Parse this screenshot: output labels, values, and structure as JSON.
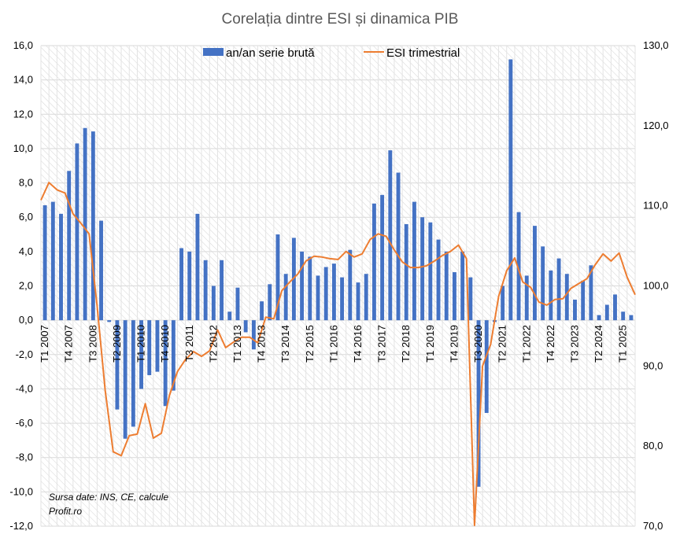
{
  "chart_data": {
    "type": "bar+line",
    "title": "Corelația dintre ESI și dinamica PIB",
    "source_note": "Sursa date: INS, CE, calcule",
    "source_site": "Profit.ro",
    "legend_position": "top",
    "grid": true,
    "colors": {
      "bar": "#4472C4",
      "line": "#ED7D31",
      "title": "#595959"
    },
    "y_left": {
      "ylim": [
        -12,
        16
      ],
      "ticks": [
        "16,0",
        "14,0",
        "12,0",
        "10,0",
        "8,0",
        "6,0",
        "4,0",
        "2,0",
        "0,0",
        "-2,0",
        "-4,0",
        "-6,0",
        "-8,0",
        "-10,0",
        "-12,0"
      ]
    },
    "y_right": {
      "ylim": [
        70,
        130
      ],
      "ticks": [
        "130,0",
        "120,0",
        "110,0",
        "100,0",
        "90,0",
        "80,0",
        "70,0"
      ]
    },
    "x_tick_labels": [
      {
        "i": 0,
        "label": "T1 2007"
      },
      {
        "i": 3,
        "label": "T4 2007"
      },
      {
        "i": 6,
        "label": "T3 2008"
      },
      {
        "i": 9,
        "label": "T2 2009"
      },
      {
        "i": 12,
        "label": "T1 2010"
      },
      {
        "i": 15,
        "label": "T4 2010"
      },
      {
        "i": 18,
        "label": "T3 2011"
      },
      {
        "i": 21,
        "label": "T2 2012"
      },
      {
        "i": 24,
        "label": "T1 2013"
      },
      {
        "i": 27,
        "label": "T4 2013"
      },
      {
        "i": 30,
        "label": "T3 2014"
      },
      {
        "i": 33,
        "label": "T2 2015"
      },
      {
        "i": 36,
        "label": "T1 2016"
      },
      {
        "i": 39,
        "label": "T4 2016"
      },
      {
        "i": 42,
        "label": "T3 2017"
      },
      {
        "i": 45,
        "label": "T2 2018"
      },
      {
        "i": 48,
        "label": "T1 2019"
      },
      {
        "i": 51,
        "label": "T4 2019"
      },
      {
        "i": 54,
        "label": "T3 2020"
      },
      {
        "i": 57,
        "label": "T2 2021"
      },
      {
        "i": 60,
        "label": "T1 2022"
      },
      {
        "i": 63,
        "label": "T4 2022"
      },
      {
        "i": 66,
        "label": "T3 2023"
      },
      {
        "i": 69,
        "label": "T2 2024"
      },
      {
        "i": 72,
        "label": "T1 2025"
      }
    ],
    "series": [
      {
        "name": "an/an serie brută",
        "type": "bar",
        "axis": "left",
        "values": [
          6.7,
          6.9,
          6.2,
          8.7,
          10.3,
          11.2,
          11.0,
          5.8,
          -0.1,
          -5.2,
          -6.9,
          -6.2,
          -4.0,
          -3.2,
          -3.0,
          -5.0,
          -4.1,
          4.2,
          4.0,
          6.2,
          3.5,
          2.0,
          3.5,
          0.5,
          1.9,
          -0.7,
          -1.7,
          1.1,
          2.1,
          5.0,
          2.7,
          4.8,
          4.0,
          3.7,
          2.6,
          3.1,
          3.3,
          2.5,
          4.1,
          2.2,
          2.7,
          6.8,
          7.3,
          9.9,
          8.6,
          5.6,
          6.9,
          6.0,
          5.7,
          4.7,
          4.0,
          2.8,
          4.0,
          2.5,
          -9.7,
          -5.4,
          -0.1,
          2.0,
          15.2,
          6.3,
          2.6,
          5.5,
          4.3,
          2.9,
          3.6,
          2.7,
          1.2,
          2.3,
          3.2,
          0.3,
          0.9,
          1.5,
          0.5,
          0.3
        ]
      },
      {
        "name": "ESI trimestrial",
        "type": "line",
        "axis": "right",
        "values": [
          110.7,
          112.9,
          112.0,
          111.6,
          109.0,
          107.8,
          106.5,
          97.5,
          87.0,
          79.3,
          78.8,
          81.3,
          81.5,
          85.3,
          81.0,
          81.6,
          86.3,
          89.3,
          90.8,
          91.8,
          91.2,
          91.9,
          94.5,
          92.3,
          93.0,
          93.6,
          93.6,
          92.9,
          96.1,
          95.9,
          99.4,
          100.5,
          101.5,
          103.1,
          103.7,
          103.6,
          103.4,
          103.3,
          104.3,
          103.6,
          104.0,
          105.8,
          106.5,
          106.2,
          104.5,
          103.0,
          102.3,
          102.3,
          102.5,
          103.1,
          103.8,
          104.3,
          105.1,
          103.4,
          70.1,
          90.0,
          92.7,
          98.7,
          101.9,
          103.5,
          100.5,
          99.8,
          98.0,
          97.6,
          98.3,
          98.4,
          99.7,
          100.3,
          100.9,
          102.6,
          104.0,
          103.1,
          104.1,
          101.1,
          98.9
        ]
      }
    ]
  }
}
